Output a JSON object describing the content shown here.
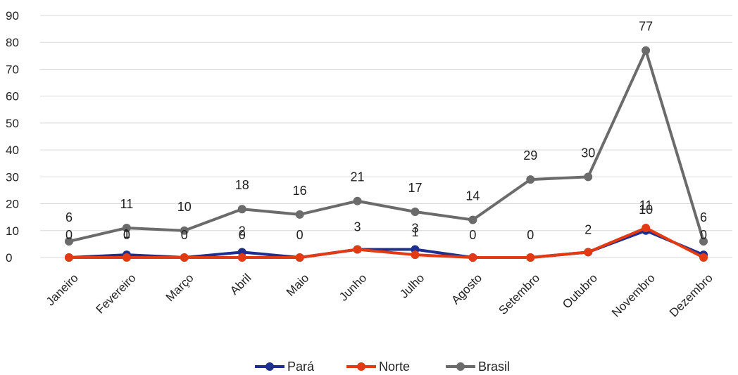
{
  "chart_data": {
    "type": "line",
    "categories": [
      "Janeiro",
      "Fevereiro",
      "Março",
      "Abril",
      "Maio",
      "Junho",
      "Julho",
      "Agosto",
      "Setembro",
      "Outubro",
      "Novembro",
      "Dezembro"
    ],
    "series": [
      {
        "name": "Pará",
        "color": "#1f2f8f",
        "values": [
          0,
          1,
          0,
          2,
          0,
          3,
          3,
          0,
          0,
          2,
          10,
          1
        ]
      },
      {
        "name": "Norte",
        "color": "#e23a12",
        "values": [
          0,
          0,
          0,
          0,
          0,
          3,
          1,
          0,
          0,
          2,
          11,
          0
        ]
      },
      {
        "name": "Brasil",
        "color": "#6b6b6b",
        "values": [
          6,
          11,
          10,
          18,
          16,
          21,
          17,
          14,
          29,
          30,
          77,
          6
        ]
      }
    ],
    "data_labels": {
      "Pará": [
        "",
        "1",
        "",
        "2",
        "",
        "",
        "3",
        "",
        "",
        "",
        "10",
        ""
      ],
      "Norte": [
        "0",
        "0",
        "0",
        "0",
        "0",
        "3",
        "1",
        "0",
        "0",
        "2",
        "11",
        "0"
      ],
      "Brasil": [
        "6",
        "11",
        "10",
        "18",
        "16",
        "21",
        "17",
        "14",
        "29",
        "30",
        "77",
        "6"
      ]
    },
    "ylim": [
      0,
      90
    ],
    "yticks": [
      0,
      10,
      20,
      30,
      40,
      50,
      60,
      70,
      80,
      90
    ],
    "grid": true,
    "legend_position": "bottom"
  }
}
